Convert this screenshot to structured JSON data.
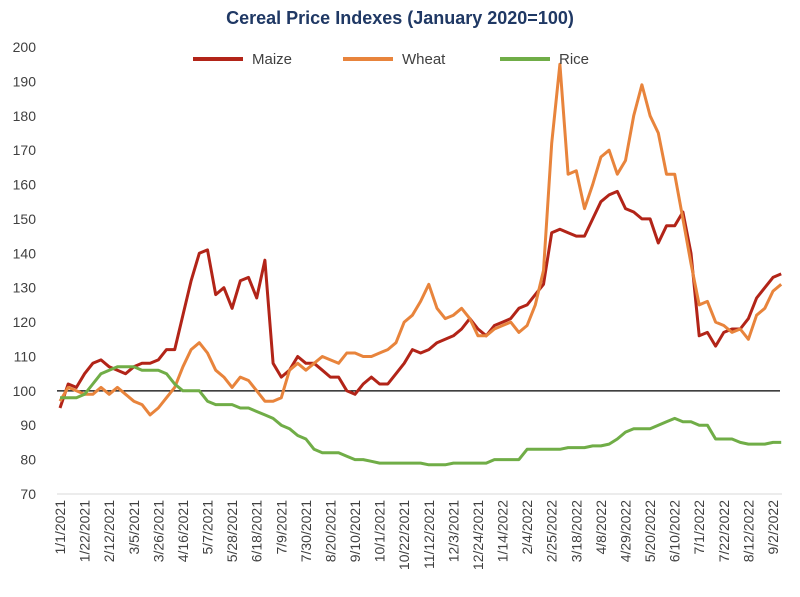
{
  "chart_data": {
    "type": "line",
    "title": "Cereal Price Indexes (January 2020=100)",
    "xlabel": "",
    "ylabel": "",
    "ylim": [
      70,
      200
    ],
    "yticks": [
      70,
      80,
      90,
      100,
      110,
      120,
      130,
      140,
      150,
      160,
      170,
      180,
      190,
      200
    ],
    "reference_line": 100,
    "grid": false,
    "legend_position": "top",
    "xtick_labels": [
      "1/1/2021",
      "1/22/2021",
      "2/12/2021",
      "3/5/2021",
      "3/26/2021",
      "4/16/2021",
      "5/7/2021",
      "5/28/2021",
      "6/18/2021",
      "7/9/2021",
      "7/30/2021",
      "8/20/2021",
      "9/10/2021",
      "10/1/2021",
      "10/22/2021",
      "11/12/2021",
      "12/3/2021",
      "12/24/2021",
      "1/14/2022",
      "2/4/2022",
      "2/25/2022",
      "3/18/2022",
      "4/8/2022",
      "4/29/2022",
      "5/20/2022",
      "6/10/2022",
      "7/1/2022",
      "7/22/2022",
      "8/12/2022",
      "9/2/2022"
    ],
    "x": [
      "1/1/2021",
      "1/8/2021",
      "1/15/2021",
      "1/22/2021",
      "1/29/2021",
      "2/5/2021",
      "2/12/2021",
      "2/19/2021",
      "2/26/2021",
      "3/5/2021",
      "3/12/2021",
      "3/19/2021",
      "3/26/2021",
      "4/2/2021",
      "4/9/2021",
      "4/16/2021",
      "4/23/2021",
      "4/30/2021",
      "5/7/2021",
      "5/14/2021",
      "5/21/2021",
      "5/28/2021",
      "6/4/2021",
      "6/11/2021",
      "6/18/2021",
      "6/25/2021",
      "7/2/2021",
      "7/9/2021",
      "7/16/2021",
      "7/23/2021",
      "7/30/2021",
      "8/6/2021",
      "8/13/2021",
      "8/20/2021",
      "8/27/2021",
      "9/3/2021",
      "9/10/2021",
      "9/17/2021",
      "9/24/2021",
      "10/1/2021",
      "10/8/2021",
      "10/15/2021",
      "10/22/2021",
      "10/29/2021",
      "11/5/2021",
      "11/12/2021",
      "11/19/2021",
      "11/26/2021",
      "12/3/2021",
      "12/10/2021",
      "12/17/2021",
      "12/24/2021",
      "12/31/2021",
      "1/7/2022",
      "1/14/2022",
      "1/21/2022",
      "1/28/2022",
      "2/4/2022",
      "2/11/2022",
      "2/18/2022",
      "2/25/2022",
      "3/4/2022",
      "3/11/2022",
      "3/18/2022",
      "3/25/2022",
      "4/1/2022",
      "4/8/2022",
      "4/15/2022",
      "4/22/2022",
      "4/29/2022",
      "5/6/2022",
      "5/13/2022",
      "5/20/2022",
      "5/27/2022",
      "6/3/2022",
      "6/10/2022",
      "6/17/2022",
      "6/24/2022",
      "7/1/2022",
      "7/8/2022",
      "7/15/2022",
      "7/22/2022",
      "7/29/2022",
      "8/5/2022",
      "8/12/2022",
      "8/19/2022",
      "8/26/2022",
      "9/2/2022",
      "9/9/2022"
    ],
    "series": [
      {
        "name": "Maize",
        "color": "#b22418",
        "values": [
          95,
          102,
          101,
          105,
          108,
          109,
          107,
          106,
          105,
          107,
          108,
          108,
          109,
          112,
          112,
          122,
          132,
          140,
          141,
          128,
          130,
          124,
          132,
          133,
          127,
          138,
          108,
          104,
          106,
          110,
          108,
          108,
          106,
          104,
          104,
          100,
          99,
          102,
          104,
          102,
          102,
          105,
          108,
          112,
          111,
          112,
          114,
          115,
          116,
          118,
          121,
          118,
          116,
          119,
          120,
          121,
          124,
          125,
          128,
          131,
          146,
          147,
          146,
          145,
          145,
          150,
          155,
          157,
          158,
          153,
          152,
          150,
          150,
          143,
          148,
          148,
          152,
          140,
          116,
          117,
          113,
          117,
          118,
          118,
          121,
          127,
          130,
          133,
          134
        ]
      },
      {
        "name": "Wheat",
        "color": "#e8843c",
        "values": [
          97,
          101,
          100,
          99,
          99,
          101,
          99,
          101,
          99,
          97,
          96,
          93,
          95,
          98,
          101,
          107,
          112,
          114,
          111,
          106,
          104,
          101,
          104,
          103,
          100,
          97,
          97,
          98,
          106,
          108,
          106,
          108,
          110,
          109,
          108,
          111,
          111,
          110,
          110,
          111,
          112,
          114,
          120,
          122,
          126,
          131,
          124,
          121,
          122,
          124,
          121,
          116,
          116,
          118,
          119,
          120,
          117,
          119,
          125,
          135,
          172,
          195,
          163,
          164,
          153,
          160,
          168,
          170,
          163,
          167,
          180,
          189,
          180,
          175,
          163,
          163,
          150,
          137,
          125,
          126,
          120,
          119,
          117,
          118,
          115,
          122,
          124,
          129,
          131
        ]
      },
      {
        "name": "Rice",
        "color": "#70ad47",
        "values": [
          98,
          98,
          98,
          99,
          102,
          105,
          106,
          107,
          107,
          107,
          106,
          106,
          106,
          105,
          102,
          100,
          100,
          100,
          97,
          96,
          96,
          96,
          95,
          95,
          94,
          93,
          92,
          90,
          89,
          87,
          86,
          83,
          82,
          82,
          82,
          81,
          80,
          80,
          79.5,
          79,
          79,
          79,
          79,
          79,
          79,
          78.5,
          78.5,
          78.5,
          79,
          79,
          79,
          79,
          79,
          80,
          80,
          80,
          80,
          83,
          83,
          83,
          83,
          83,
          83.5,
          83.5,
          83.5,
          84,
          84,
          84.5,
          86,
          88,
          89,
          89,
          89,
          90,
          91,
          92,
          91,
          91,
          90,
          90,
          86,
          86,
          86,
          85,
          84.5,
          84.5,
          84.5,
          85,
          85
        ]
      }
    ]
  }
}
